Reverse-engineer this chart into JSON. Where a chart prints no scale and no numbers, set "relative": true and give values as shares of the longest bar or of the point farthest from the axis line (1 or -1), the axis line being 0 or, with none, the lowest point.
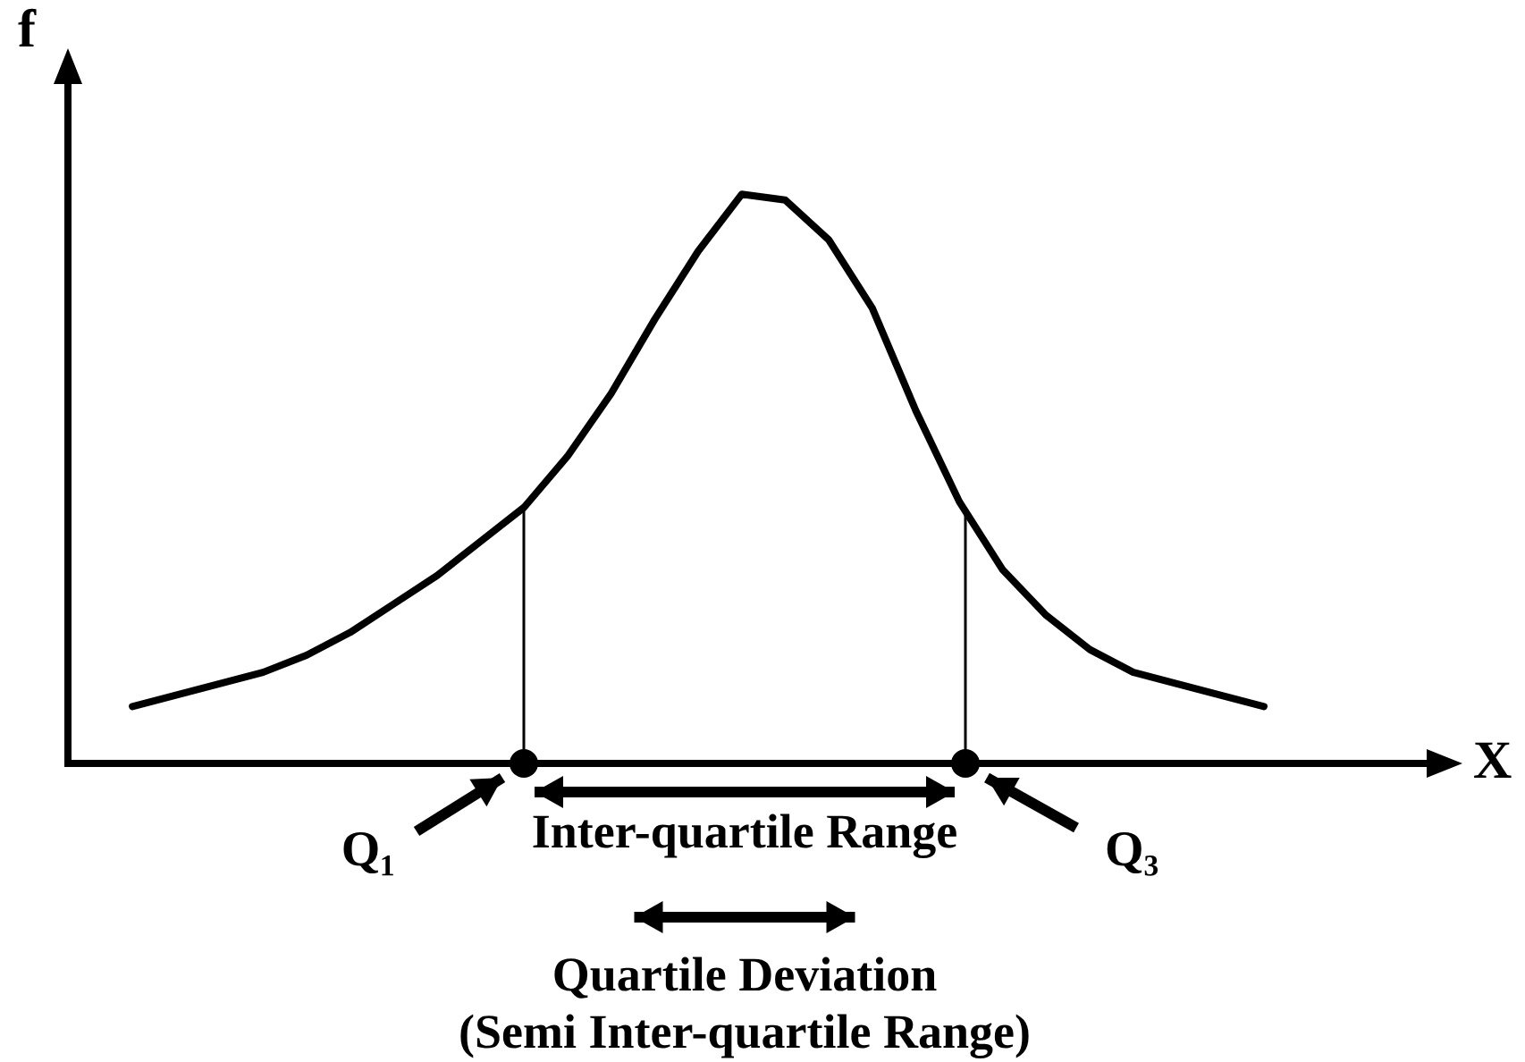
{
  "chart_data": {
    "type": "line",
    "relative": true,
    "xlabel": "X",
    "ylabel": "f",
    "categories": [
      null,
      null,
      null,
      null,
      null,
      null,
      null,
      null,
      null,
      null,
      null,
      null,
      null,
      null,
      null,
      null,
      null,
      null,
      null,
      null,
      null,
      null,
      null,
      null,
      null,
      null,
      null
    ],
    "series": [
      {
        "color": "#000000",
        "values": [
          0.1,
          0.12,
          0.14,
          0.16,
          0.19,
          0.23,
          0.28,
          0.33,
          0.39,
          0.45,
          0.54,
          0.65,
          0.78,
          0.9,
          1,
          0.99,
          0.92,
          0.8,
          0.62,
          0.46,
          0.34,
          0.26,
          0.2,
          0.16,
          0.14,
          0.12,
          0.1
        ]
      }
    ],
    "annotations": [
      "Q₁",
      "Inter-quartile Range",
      "Q₃",
      "Quartile Deviation",
      "(Semi Inter-quartile Range)"
    ],
    "legend": false,
    "marker": "none",
    "line_style": "solid"
  }
}
